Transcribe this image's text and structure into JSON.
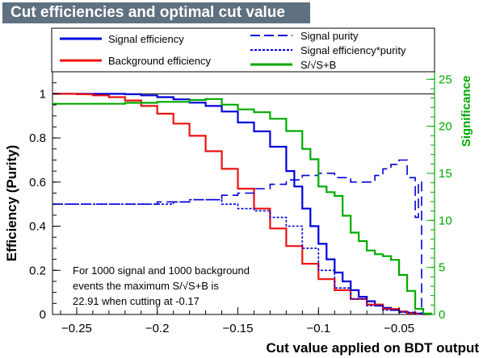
{
  "chart_data": {
    "type": "line",
    "title": "Cut efficiencies and optimal cut value",
    "xlabel": "Cut value applied on BDT output",
    "ylabel": "Efficiency (Purity)",
    "y2label": "Significance",
    "xlim": [
      -0.265,
      -0.028
    ],
    "ylim": [
      0,
      1.1
    ],
    "y2lim": [
      0,
      25.8
    ],
    "x_ticks": [
      -0.25,
      -0.2,
      -0.15,
      -0.1,
      -0.05
    ],
    "x_tick_labels": [
      "−0.25",
      "−0.2",
      "−0.15",
      "−0.1",
      "−0.05"
    ],
    "y_ticks": [
      0,
      0.2,
      0.4,
      0.6,
      0.8,
      1
    ],
    "y_tick_labels": [
      "0",
      "0.2",
      "0.4",
      "0.6",
      "0.8",
      "1"
    ],
    "y2_ticks": [
      0,
      5,
      10,
      15,
      20,
      25
    ],
    "y2_tick_labels": [
      "0",
      "5",
      "10",
      "15",
      "20",
      "25"
    ],
    "legend": [
      {
        "label": "Signal efficiency",
        "color": "#0000dd",
        "style": "solid"
      },
      {
        "label": "Background efficiency",
        "color": "#ee1111",
        "style": "solid"
      },
      {
        "label": "Signal purity",
        "color": "#0000dd",
        "style": "dashed"
      },
      {
        "label": "Signal efficiency*purity",
        "color": "#0000dd",
        "style": "dotted"
      },
      {
        "label": "S/√S+B",
        "color": "#00aa00",
        "style": "solid"
      }
    ],
    "annotation": [
      "For 1000 signal and 1000 background",
      "events the maximum S/√S+B is",
      "22.91 when cutting at -0.17"
    ],
    "series": [
      {
        "name": "Signal efficiency",
        "axis": "left",
        "color": "#0000dd",
        "dash": "",
        "x": [
          -0.265,
          -0.25,
          -0.24,
          -0.23,
          -0.22,
          -0.21,
          -0.2,
          -0.19,
          -0.18,
          -0.17,
          -0.16,
          -0.15,
          -0.14,
          -0.13,
          -0.12,
          -0.115,
          -0.11,
          -0.105,
          -0.1,
          -0.095,
          -0.09,
          -0.085,
          -0.08,
          -0.075,
          -0.07,
          -0.065,
          -0.06,
          -0.055,
          -0.05,
          -0.045,
          -0.04,
          -0.035,
          -0.03
        ],
        "y": [
          1.0,
          1.0,
          1.0,
          1.0,
          0.998,
          0.993,
          0.985,
          0.975,
          0.96,
          0.945,
          0.92,
          0.87,
          0.83,
          0.76,
          0.65,
          0.58,
          0.48,
          0.4,
          0.32,
          0.25,
          0.19,
          0.15,
          0.11,
          0.08,
          0.06,
          0.04,
          0.03,
          0.02,
          0.013,
          0.007,
          0.004,
          0.001,
          0.0
        ]
      },
      {
        "name": "Background efficiency",
        "axis": "left",
        "color": "#ee1111",
        "dash": "",
        "x": [
          -0.265,
          -0.25,
          -0.24,
          -0.23,
          -0.22,
          -0.21,
          -0.2,
          -0.19,
          -0.18,
          -0.17,
          -0.16,
          -0.15,
          -0.14,
          -0.13,
          -0.12,
          -0.11,
          -0.1,
          -0.09,
          -0.08,
          -0.07,
          -0.06,
          -0.05,
          -0.045,
          -0.04,
          -0.035,
          -0.03
        ],
        "y": [
          1.0,
          0.998,
          0.993,
          0.985,
          0.97,
          0.945,
          0.91,
          0.865,
          0.81,
          0.74,
          0.66,
          0.57,
          0.48,
          0.39,
          0.31,
          0.23,
          0.16,
          0.11,
          0.07,
          0.045,
          0.025,
          0.012,
          0.007,
          0.003,
          0.001,
          0.0
        ]
      },
      {
        "name": "Signal purity",
        "axis": "left",
        "color": "#0000dd",
        "dash": "12,6",
        "x": [
          -0.265,
          -0.24,
          -0.22,
          -0.2,
          -0.18,
          -0.16,
          -0.15,
          -0.14,
          -0.13,
          -0.12,
          -0.11,
          -0.1,
          -0.09,
          -0.08,
          -0.07,
          -0.065,
          -0.06,
          -0.055,
          -0.05,
          -0.045,
          -0.04,
          -0.038,
          -0.036
        ],
        "y": [
          0.5,
          0.5,
          0.5,
          0.51,
          0.52,
          0.54,
          0.55,
          0.57,
          0.59,
          0.61,
          0.63,
          0.64,
          0.62,
          0.6,
          0.6,
          0.63,
          0.66,
          0.68,
          0.7,
          0.62,
          0.44,
          0.6,
          0.0
        ]
      },
      {
        "name": "Signal efficiency*purity",
        "axis": "left",
        "color": "#0000dd",
        "dash": "3,2",
        "x": [
          -0.265,
          -0.24,
          -0.22,
          -0.2,
          -0.19,
          -0.18,
          -0.17,
          -0.16,
          -0.15,
          -0.14,
          -0.13,
          -0.12,
          -0.11,
          -0.1,
          -0.09,
          -0.08,
          -0.07,
          -0.06,
          -0.05,
          -0.04,
          -0.035,
          -0.03
        ],
        "y": [
          0.5,
          0.5,
          0.5,
          0.5,
          0.51,
          0.52,
          0.52,
          0.5,
          0.48,
          0.47,
          0.44,
          0.4,
          0.3,
          0.2,
          0.12,
          0.07,
          0.04,
          0.02,
          0.01,
          0.003,
          0.001,
          0.0
        ]
      },
      {
        "name": "S/√S+B",
        "axis": "right",
        "color": "#00aa00",
        "dash": "",
        "x": [
          -0.265,
          -0.25,
          -0.22,
          -0.2,
          -0.18,
          -0.17,
          -0.16,
          -0.15,
          -0.14,
          -0.13,
          -0.12,
          -0.11,
          -0.105,
          -0.1,
          -0.095,
          -0.09,
          -0.085,
          -0.08,
          -0.075,
          -0.07,
          -0.065,
          -0.06,
          -0.055,
          -0.05,
          -0.045,
          -0.04,
          -0.035,
          -0.03
        ],
        "y": [
          22.4,
          22.4,
          22.5,
          22.6,
          22.8,
          22.9,
          22.3,
          21.8,
          21.5,
          20.8,
          19.5,
          17.6,
          16.5,
          13.6,
          13.0,
          12.6,
          10.5,
          8.7,
          7.8,
          6.8,
          6.4,
          6.2,
          5.8,
          4.2,
          2.5,
          0.6,
          0.1,
          0.0
        ]
      }
    ]
  }
}
